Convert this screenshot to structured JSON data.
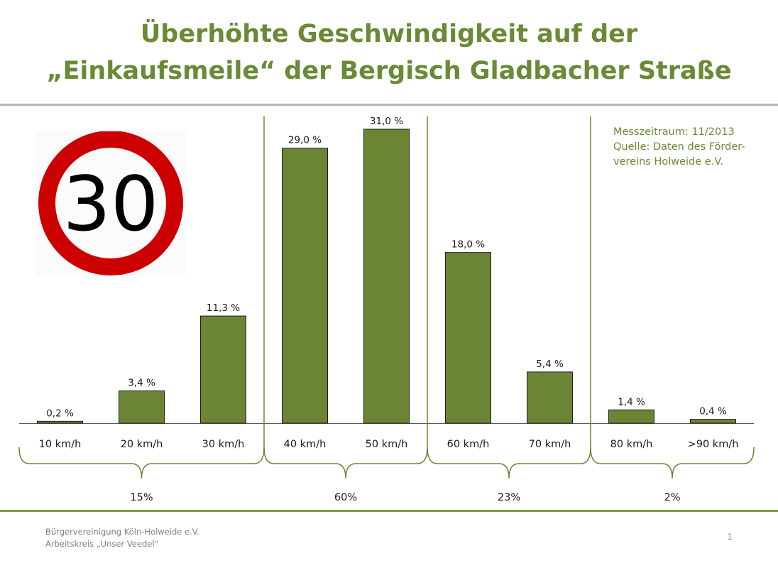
{
  "slide": {
    "title_line1": "Überhöhte Geschwindigkeit auf der",
    "title_line2": "„Einkaufsmeile“ der Bergisch Gladbacher Straße",
    "source_line1": "Messzeitraum: 11/2013",
    "source_line2": "Quelle:  Daten des Förder-",
    "source_line3": "vereins Holweide e.V.",
    "footer_line1": "Bürgervereinigung Köln-Holweide e.V.",
    "footer_line2": "Arbeitskreis „Unser Veedel“",
    "page_number": "1"
  },
  "sign": {
    "label": "30",
    "ring_color": "#cc0000"
  },
  "colors": {
    "accent": "#6a8a35",
    "bar": "#6b8535",
    "bar_border": "#1f1f1f"
  },
  "chart_data": {
    "type": "bar",
    "title": "Überhöhte Geschwindigkeit auf der „Einkaufsmeile“ der Bergisch Gladbacher Straße",
    "categories": [
      "10 km/h",
      "20 km/h",
      "30 km/h",
      "40 km/h",
      "50 km/h",
      "60 km/h",
      "70 km/h",
      "80 km/h",
      ">90 km/h"
    ],
    "values": [
      0.2,
      3.4,
      11.3,
      29.0,
      31.0,
      18.0,
      5.4,
      1.4,
      0.4
    ],
    "value_labels": [
      "0,2 %",
      "3,4 %",
      "11,3 %",
      "29,0 %",
      "31,0 %",
      "18,0 %",
      "5,4 %",
      "1,4 %",
      "0,4 %"
    ],
    "ylim": [
      0,
      31
    ],
    "xlabel": "",
    "ylabel": "",
    "grid": false,
    "groups": [
      {
        "label": "15%",
        "start": 0,
        "end": 2
      },
      {
        "label": "60%",
        "start": 3,
        "end": 4
      },
      {
        "label": "23%",
        "start": 5,
        "end": 6
      },
      {
        "label": "2%",
        "start": 7,
        "end": 8
      }
    ]
  }
}
